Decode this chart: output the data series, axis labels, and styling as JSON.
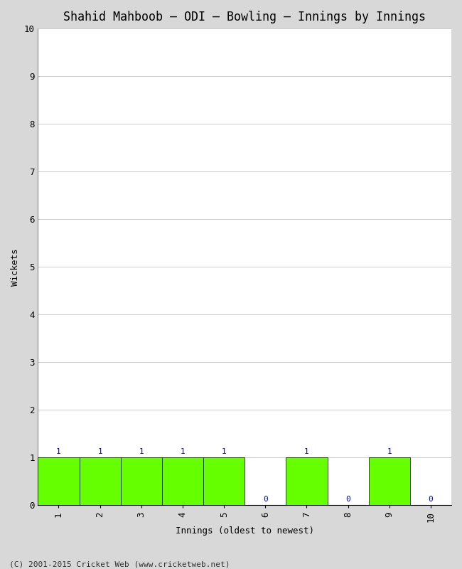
{
  "title": "Shahid Mahboob – ODI – Bowling – Innings by Innings",
  "xlabel": "Innings (oldest to newest)",
  "ylabel": "Wickets",
  "footnote": "(C) 2001-2015 Cricket Web (www.cricketweb.net)",
  "innings": [
    1,
    2,
    3,
    4,
    5,
    6,
    7,
    8,
    9,
    10
  ],
  "wickets": [
    1,
    1,
    1,
    1,
    1,
    0,
    1,
    0,
    1,
    0
  ],
  "bar_color": "#66ff00",
  "bar_edge_color": "#000000",
  "label_color": "#0000cc",
  "ylim": [
    0,
    10
  ],
  "yticks": [
    0,
    1,
    2,
    3,
    4,
    5,
    6,
    7,
    8,
    9,
    10
  ],
  "xticks": [
    1,
    2,
    3,
    4,
    5,
    6,
    7,
    8,
    9,
    10
  ],
  "background_color": "#d8d8d8",
  "plot_bg_color": "#ffffff",
  "title_fontsize": 12,
  "label_fontsize": 9,
  "tick_fontsize": 9,
  "annotation_fontsize": 8,
  "bar_width": 1.0
}
